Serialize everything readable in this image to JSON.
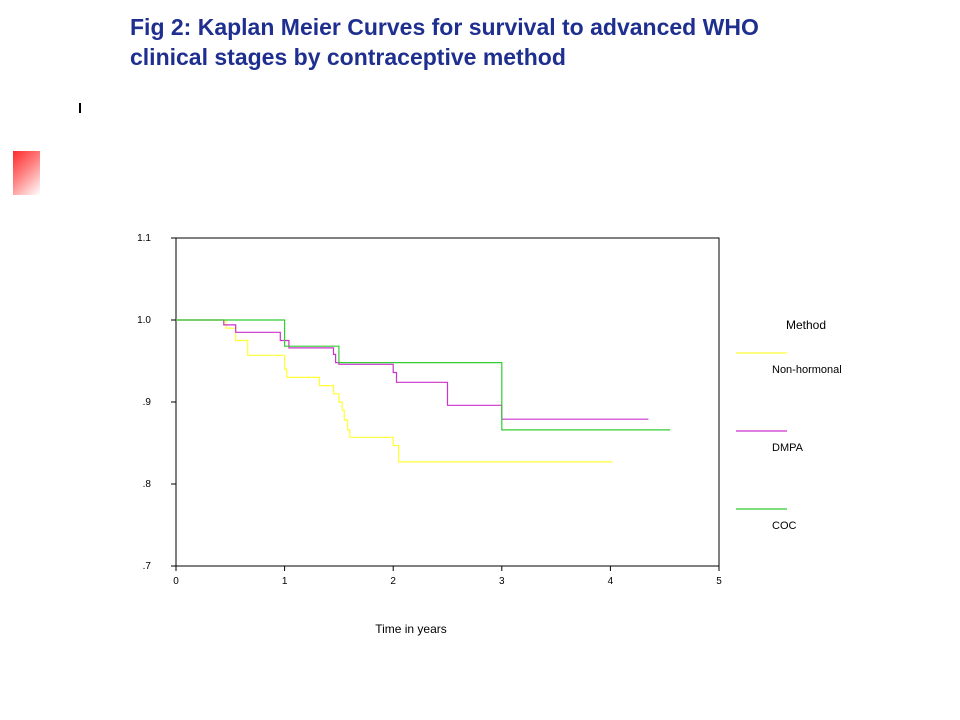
{
  "title": {
    "line1": "Fig 2: Kaplan Meier Curves for survival to advanced WHO",
    "line2": "clinical stages by contraceptive method"
  },
  "colors": {
    "title": "#1f2f8f",
    "Non-hormonal": "#ffff33",
    "DMPA": "#cc33cc",
    "COC": "#33cc33"
  },
  "chart_data": {
    "type": "line",
    "step": true,
    "title": "",
    "xlabel": "Time in years",
    "ylabel": "",
    "xlim": [
      0,
      5
    ],
    "ylim": [
      0.7,
      1.1
    ],
    "x_ticks": [
      0,
      1,
      2,
      3,
      4,
      5
    ],
    "x_tick_labels": [
      "0",
      "1",
      "2",
      "3",
      "4",
      "5"
    ],
    "y_ticks": [
      0.7,
      0.8,
      0.9,
      1.0,
      1.1
    ],
    "y_tick_labels": [
      ".7",
      ".8",
      ".9",
      "1.0",
      "1.1"
    ],
    "grid": false,
    "legend": {
      "title": "Method",
      "placement": "right"
    },
    "series": [
      {
        "name": "Non-hormonal",
        "color": "#ffff33",
        "points": [
          [
            0,
            1.0
          ],
          [
            0.46,
            1.0
          ],
          [
            0.46,
            0.99
          ],
          [
            0.55,
            0.99
          ],
          [
            0.55,
            0.975
          ],
          [
            0.66,
            0.975
          ],
          [
            0.66,
            0.957
          ],
          [
            1.0,
            0.957
          ],
          [
            1.0,
            0.94
          ],
          [
            1.02,
            0.94
          ],
          [
            1.02,
            0.93
          ],
          [
            1.32,
            0.93
          ],
          [
            1.32,
            0.92
          ],
          [
            1.45,
            0.92
          ],
          [
            1.45,
            0.91
          ],
          [
            1.5,
            0.91
          ],
          [
            1.5,
            0.9
          ],
          [
            1.53,
            0.9
          ],
          [
            1.53,
            0.89
          ],
          [
            1.55,
            0.89
          ],
          [
            1.55,
            0.878
          ],
          [
            1.58,
            0.878
          ],
          [
            1.58,
            0.866
          ],
          [
            1.6,
            0.866
          ],
          [
            1.6,
            0.857
          ],
          [
            2.0,
            0.857
          ],
          [
            2.0,
            0.847
          ],
          [
            2.05,
            0.847
          ],
          [
            2.05,
            0.827
          ],
          [
            4.02,
            0.827
          ]
        ]
      },
      {
        "name": "DMPA",
        "color": "#cc33cc",
        "points": [
          [
            0,
            1.0
          ],
          [
            0.44,
            1.0
          ],
          [
            0.44,
            0.994
          ],
          [
            0.55,
            0.994
          ],
          [
            0.55,
            0.985
          ],
          [
            0.96,
            0.985
          ],
          [
            0.96,
            0.975
          ],
          [
            1.04,
            0.975
          ],
          [
            1.04,
            0.966
          ],
          [
            1.45,
            0.966
          ],
          [
            1.45,
            0.958
          ],
          [
            1.47,
            0.958
          ],
          [
            1.47,
            0.948
          ],
          [
            1.5,
            0.948
          ],
          [
            1.5,
            0.946
          ],
          [
            2.0,
            0.946
          ],
          [
            2.0,
            0.936
          ],
          [
            2.03,
            0.936
          ],
          [
            2.03,
            0.924
          ],
          [
            2.5,
            0.924
          ],
          [
            2.5,
            0.896
          ],
          [
            3.0,
            0.896
          ],
          [
            3.0,
            0.879
          ],
          [
            4.35,
            0.879
          ]
        ]
      },
      {
        "name": "COC",
        "color": "#33cc33",
        "points": [
          [
            0,
            1.0
          ],
          [
            1.0,
            1.0
          ],
          [
            1.0,
            0.968
          ],
          [
            1.5,
            0.968
          ],
          [
            1.5,
            0.948
          ],
          [
            3.0,
            0.948
          ],
          [
            3.0,
            0.866
          ],
          [
            4.55,
            0.866
          ]
        ]
      }
    ]
  }
}
